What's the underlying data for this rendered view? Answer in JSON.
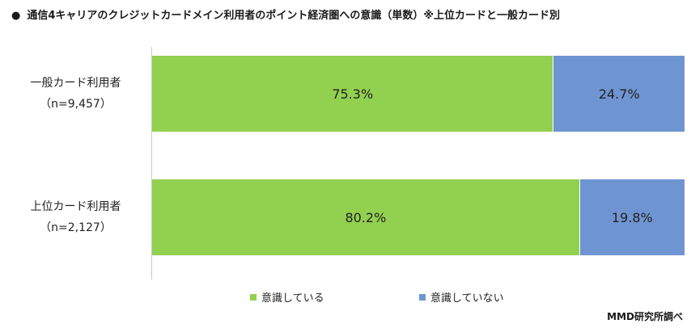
{
  "chart_data": {
    "type": "bar",
    "orientation": "horizontal",
    "stacked": true,
    "title": "通信4キャリアのクレジットカードメイン利用者のポイント経済圏への意識（単数）※上位カードと一般カード別",
    "title_bullet": "●",
    "categories": [
      {
        "label": "一般カード利用者",
        "n": "（n=9,457）"
      },
      {
        "label": "上位カード利用者",
        "n": "（n=2,127）"
      }
    ],
    "series": [
      {
        "name": "意識している",
        "color": "#92d050",
        "values": [
          75.3,
          80.2
        ],
        "labels": [
          "75.3%",
          "80.2%"
        ]
      },
      {
        "name": "意識していない",
        "color": "#6e95d2",
        "values": [
          24.7,
          19.8
        ],
        "labels": [
          "24.7%",
          "19.8%"
        ]
      }
    ],
    "xlim": [
      0,
      100
    ],
    "legend_position": "bottom",
    "grid": false,
    "source": "MMD研究所調べ"
  }
}
